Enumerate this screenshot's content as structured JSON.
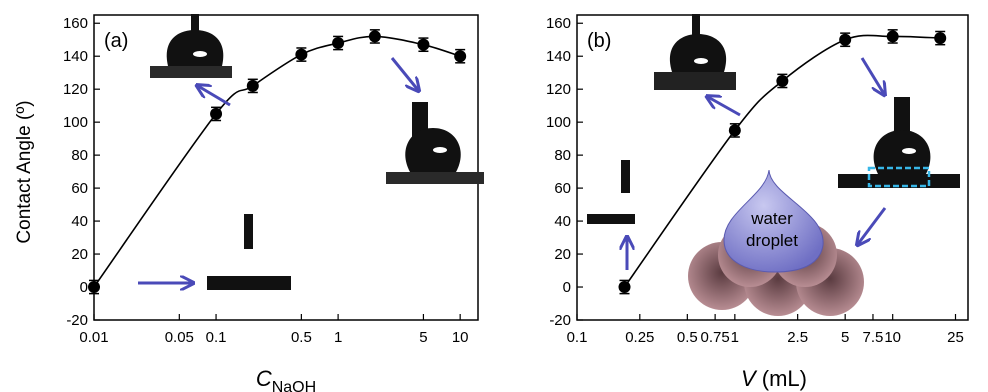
{
  "figure": {
    "ylabel": "Contact Angle (º)",
    "colors": {
      "curve": "#000000",
      "marker": "#000000",
      "arrow": "#4a4ab8",
      "drop": "#8f8fd6",
      "dash_box": "#38b7e8",
      "sphere": "#a47a80"
    }
  },
  "chart_data": [
    {
      "type": "scatter",
      "panel_label": "(a)",
      "xlabel": "C",
      "xlabel_sub": "NaOH",
      "xscale": "log",
      "xlim": [
        0.01,
        14
      ],
      "ylim": [
        -20,
        165
      ],
      "x_ticks": [
        {
          "v": 0.01,
          "label": "0.01"
        },
        {
          "v": 0.05,
          "label": "0.05"
        },
        {
          "v": 0.1,
          "label": "0.1"
        },
        {
          "v": 0.5,
          "label": "0.5"
        },
        {
          "v": 1,
          "label": "1"
        },
        {
          "v": 5,
          "label": "5"
        },
        {
          "v": 10,
          "label": "10"
        }
      ],
      "y_ticks": [
        "-20",
        "0",
        "20",
        "40",
        "60",
        "80",
        "100",
        "120",
        "140",
        "160"
      ],
      "x": [
        0.01,
        0.1,
        0.2,
        0.5,
        1,
        2,
        5,
        10
      ],
      "y": [
        0,
        105,
        122,
        141,
        148,
        152,
        147,
        140
      ],
      "error": [
        4,
        4,
        4,
        4,
        4,
        4,
        4,
        4
      ],
      "fit_curve": true,
      "grid": false
    },
    {
      "type": "scatter",
      "panel_label": "(b)",
      "xlabel": "V",
      "xlabel_unit": " (mL)",
      "xscale": "log",
      "xlim": [
        0.1,
        30
      ],
      "ylim": [
        -20,
        165
      ],
      "x_ticks": [
        {
          "v": 0.1,
          "label": "0.1"
        },
        {
          "v": 0.25,
          "label": "0.25"
        },
        {
          "v": 0.5,
          "label": "0.5"
        },
        {
          "v": 0.75,
          "label": "0.75"
        },
        {
          "v": 1,
          "label": "1"
        },
        {
          "v": 2.5,
          "label": "2.5"
        },
        {
          "v": 5,
          "label": "5"
        },
        {
          "v": 7.5,
          "label": "7.5"
        },
        {
          "v": 10,
          "label": "10"
        },
        {
          "v": 25,
          "label": "25"
        }
      ],
      "y_ticks": [
        "-20",
        "0",
        "20",
        "40",
        "60",
        "80",
        "100",
        "120",
        "140",
        "160"
      ],
      "x": [
        0.2,
        1,
        2,
        5,
        10,
        20
      ],
      "y": [
        0,
        95,
        125,
        150,
        152,
        151
      ],
      "error": [
        4,
        4,
        4,
        4,
        4,
        4
      ],
      "fit_curve": true,
      "grid": false,
      "annotation": [
        "water",
        "droplet"
      ]
    }
  ]
}
